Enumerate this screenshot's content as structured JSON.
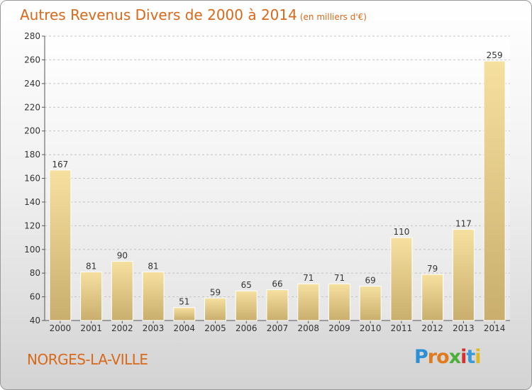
{
  "title": "Autres Revenus Divers de 2000 à 2014",
  "subtitle": "(en milliers d'€)",
  "commune": "NORGES-LA-VILLE",
  "logo": {
    "letters": [
      "P",
      "r",
      "o",
      "x",
      "i",
      "t",
      "i"
    ],
    "colors": [
      "#2a8fd4",
      "#e07a1c",
      "#e07a1c",
      "#4caf3c",
      "#d82f2f",
      "#3a9ad9",
      "#e0b81c"
    ]
  },
  "colors": {
    "accent": "#d9691a",
    "bar_light": "#f5df9c",
    "bar_dark": "#c8ad6c"
  },
  "chart_data": {
    "type": "bar",
    "title": "Autres Revenus Divers de 2000 à 2014",
    "subtitle": "(en milliers d'€)",
    "categories": [
      "2000",
      "2001",
      "2002",
      "2003",
      "2004",
      "2005",
      "2006",
      "2007",
      "2008",
      "2009",
      "2010",
      "2011",
      "2012",
      "2013",
      "2014"
    ],
    "values": [
      167,
      81,
      90,
      81,
      51,
      59,
      65,
      66,
      71,
      71,
      69,
      110,
      79,
      117,
      259
    ],
    "ylim": [
      40,
      280
    ],
    "yticks": [
      40,
      60,
      80,
      100,
      120,
      140,
      160,
      180,
      200,
      220,
      240,
      260,
      280
    ],
    "grid": true,
    "xlabel": "",
    "ylabel": ""
  }
}
